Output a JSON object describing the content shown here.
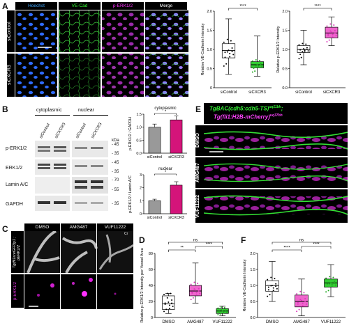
{
  "panels": {
    "A": "A",
    "B": "B",
    "C": "C",
    "D": "D",
    "E": "E",
    "F": "F"
  },
  "panelA": {
    "headers": [
      "Hoechst",
      "VE-Cad",
      "p-ERK1/2",
      "Merge"
    ],
    "header_colors": [
      "#3fa9ff",
      "#33ff33",
      "#ff33ff",
      "#ffffff"
    ],
    "rows": [
      "siControl",
      "siCXCR3"
    ]
  },
  "chartA1": {
    "type": "box",
    "ylabel": "Relative VE-Cadherin Intensity",
    "yticks": [
      "0",
      "0.5",
      "1.0",
      "1.5",
      "2.0"
    ],
    "ylim": [
      0,
      2
    ],
    "categories": [
      "siControl",
      "siCXCR3"
    ],
    "sig": "****",
    "boxes": [
      {
        "min": 0.35,
        "q1": 0.78,
        "med": 0.97,
        "q3": 1.15,
        "max": 1.8,
        "color": "#ffffff"
      },
      {
        "min": 0.3,
        "q1": 0.52,
        "med": 0.6,
        "q3": 0.68,
        "max": 1.35,
        "color": "#33cc33"
      }
    ]
  },
  "chartA2": {
    "type": "box",
    "ylabel": "Relative p-ERK1/2 Intensity",
    "yticks": [
      "0.0",
      "0.5",
      "1.0",
      "1.5",
      "2.0"
    ],
    "ylim": [
      0,
      2
    ],
    "categories": [
      "siControl",
      "siCXCR3"
    ],
    "sig": "****",
    "boxes": [
      {
        "min": 0.6,
        "q1": 0.92,
        "med": 1.0,
        "q3": 1.1,
        "max": 1.5,
        "color": "#ffffff"
      },
      {
        "min": 1.1,
        "q1": 1.3,
        "med": 1.43,
        "q3": 1.58,
        "max": 1.85,
        "color": "#ee66cc"
      }
    ]
  },
  "panelB": {
    "groups": [
      "cytoplasmic",
      "nuclear"
    ],
    "lanes": [
      "siControl",
      "siCXCR3",
      "siControl",
      "siCXCR3"
    ],
    "kda": "kDa",
    "blots": [
      {
        "name": "p-ERK1/2",
        "markers": [
          "- 45",
          "- 35"
        ]
      },
      {
        "name": "ERK1/2",
        "markers": [
          "- 45",
          "- 35"
        ]
      },
      {
        "name": "Lamin A/C",
        "markers": [
          "- 70",
          "- 55"
        ]
      },
      {
        "name": "GAPDH",
        "markers": [
          "- 35"
        ]
      }
    ]
  },
  "chartB1": {
    "type": "bar",
    "title": "cytoplasmic",
    "ylabel": "p-ERK1/2 / GAPDH",
    "yticks": [
      "0.0",
      "0.5",
      "1.0",
      "1.5"
    ],
    "ylim": [
      0,
      1.5
    ],
    "categories": [
      "siControl",
      "siCXCR3"
    ],
    "values": [
      1.0,
      1.28
    ],
    "colors": [
      "#999999",
      "#d4147a"
    ],
    "sig": "*"
  },
  "chartB2": {
    "type": "bar",
    "title": "nuclear",
    "ylabel": "p-ERK1/2 / Lamin A/C",
    "yticks": [
      "0",
      "1",
      "2",
      "3"
    ],
    "ylim": [
      0,
      3
    ],
    "categories": [
      "siControl",
      "siCXCR3"
    ],
    "values": [
      1.0,
      2.2
    ],
    "colors": [
      "#999999",
      "#d4147a"
    ],
    "sig": "*"
  },
  "panelC": {
    "headers": [
      "DMSO",
      "AMG487",
      "VUF11222"
    ],
    "row1": "Tg(fli1a:eGFP)y1 ; pERK1/2",
    "row2": "p-ERK1/2",
    "cr": "Cr"
  },
  "chartD": {
    "type": "box",
    "ylabel": "Relative p-ERK1/2 Intensity per Vessel Area",
    "yticks": [
      "0",
      "20",
      "40",
      "60",
      "80"
    ],
    "ylim": [
      0,
      80
    ],
    "categories": [
      "DMSO",
      "AMG487",
      "VUF11222"
    ],
    "sigs": [
      "**",
      "****",
      "ns"
    ],
    "boxes": [
      {
        "min": 5,
        "q1": 10,
        "med": 17,
        "q3": 27,
        "max": 30,
        "color": "#ffffff"
      },
      {
        "min": 18,
        "q1": 27,
        "med": 33,
        "q3": 40,
        "max": 68,
        "color": "#ee66cc"
      },
      {
        "min": 2,
        "q1": 5,
        "med": 8,
        "q3": 11,
        "max": 14,
        "color": "#33cc33"
      }
    ]
  },
  "panelE": {
    "title1": "TgBAC(cdh5:cdh5-TS)",
    "sup1": "uq11bh",
    "title2": "Tg(fli1:H2B-mCherry)",
    "sup2": "uq37bh",
    "rows": [
      "DMSO",
      "AMG487",
      "VUF11222"
    ]
  },
  "chartF": {
    "type": "box",
    "ylabel": "Relative VE-Cadherin Intensity",
    "yticks": [
      "0.0",
      "0.5",
      "1.0",
      "1.5",
      "2.0"
    ],
    "ylim": [
      0,
      2
    ],
    "categories": [
      "DMSO",
      "AMG487",
      "VUF11222"
    ],
    "sigs": [
      "****",
      "****",
      "ns"
    ],
    "boxes": [
      {
        "min": 0.5,
        "q1": 0.82,
        "med": 1.0,
        "q3": 1.15,
        "max": 1.75,
        "color": "#ffffff"
      },
      {
        "min": 0.05,
        "q1": 0.33,
        "med": 0.5,
        "q3": 0.7,
        "max": 1.2,
        "color": "#ee66cc"
      },
      {
        "min": 0.65,
        "q1": 0.95,
        "med": 1.08,
        "q3": 1.2,
        "max": 1.65,
        "color": "#33cc33"
      }
    ]
  },
  "chart_data": [
    {
      "type": "box",
      "ylabel": "Relative VE-Cadherin Intensity",
      "categories": [
        "siControl",
        "siCXCR3"
      ],
      "medians": [
        0.97,
        0.6
      ]
    },
    {
      "type": "box",
      "ylabel": "Relative p-ERK1/2 Intensity",
      "categories": [
        "siControl",
        "siCXCR3"
      ],
      "medians": [
        1.0,
        1.43
      ]
    },
    {
      "type": "bar",
      "title": "cytoplasmic",
      "ylabel": "p-ERK1/2 / GAPDH",
      "categories": [
        "siControl",
        "siCXCR3"
      ],
      "values": [
        1.0,
        1.28
      ]
    },
    {
      "type": "bar",
      "title": "nuclear",
      "ylabel": "p-ERK1/2 / Lamin A/C",
      "categories": [
        "siControl",
        "siCXCR3"
      ],
      "values": [
        1.0,
        2.2
      ]
    },
    {
      "type": "box",
      "ylabel": "Relative p-ERK1/2 Intensity per Vessel Area",
      "categories": [
        "DMSO",
        "AMG487",
        "VUF11222"
      ],
      "medians": [
        17,
        33,
        8
      ]
    },
    {
      "type": "box",
      "ylabel": "Relative VE-Cadherin Intensity",
      "categories": [
        "DMSO",
        "AMG487",
        "VUF11222"
      ],
      "medians": [
        1.0,
        0.5,
        1.08
      ]
    }
  ]
}
